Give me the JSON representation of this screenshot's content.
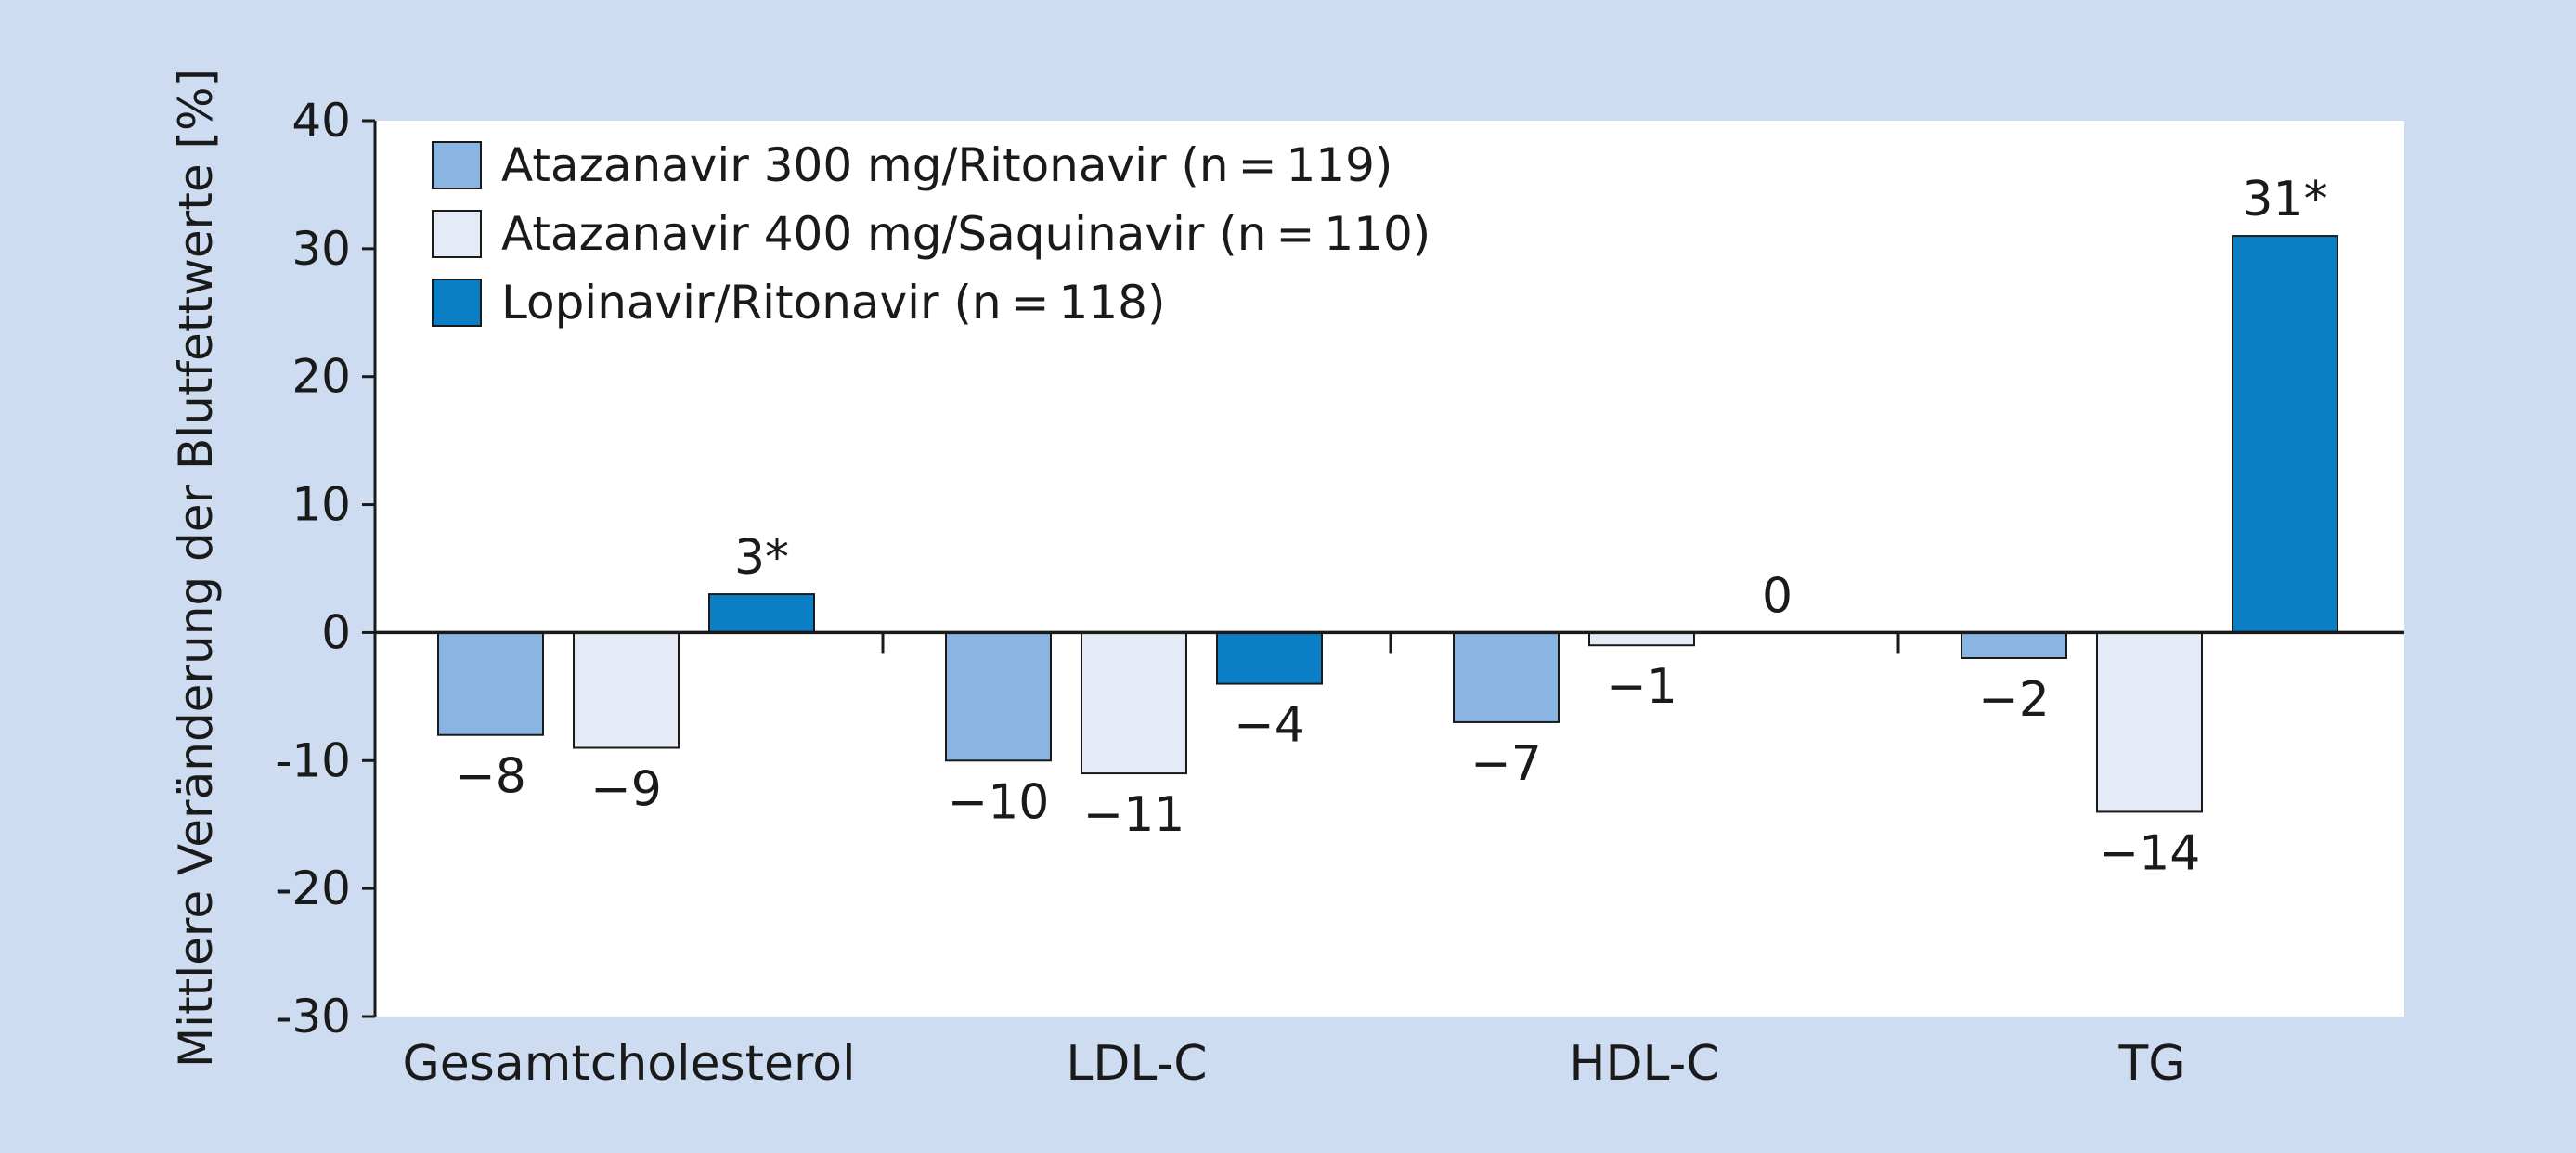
{
  "colors": {
    "frame": "#cddcf1",
    "plot": "#ffffff",
    "axis": "#1a1a1a",
    "series": [
      "#8ab4e2",
      "#e4ebf6",
      "#0b7fc6"
    ]
  },
  "chart_data": {
    "type": "bar",
    "title": "",
    "xlabel": "",
    "ylabel": "Mittlere Veränderung der Blutfettwerte [%]",
    "ylim": [
      -30,
      40
    ],
    "yticks": [
      -30,
      -20,
      -10,
      0,
      10,
      20,
      30,
      40
    ],
    "ytick_labels": [
      "-30",
      "-20",
      "-10",
      "0",
      "10",
      "20",
      "30",
      "40"
    ],
    "grid": false,
    "legend_position": "top-left",
    "categories": [
      "Gesamtcholesterol",
      "LDL-C",
      "HDL-C",
      "TG"
    ],
    "series": [
      {
        "name": "Atazanavir 300 mg/Ritonavir (n = 119)",
        "values": [
          -8,
          -10,
          -7,
          -2
        ],
        "labels": [
          "−8",
          "−10",
          "−7",
          "−2"
        ]
      },
      {
        "name": "Atazanavir 400 mg/Saquinavir (n = 110)",
        "values": [
          -9,
          -11,
          -1,
          -14
        ],
        "labels": [
          "−9",
          "−11",
          "−1",
          "−14"
        ]
      },
      {
        "name": "Lopinavir/Ritonavir (n = 118)",
        "values": [
          3,
          -4,
          0,
          31
        ],
        "labels": [
          "3*",
          "−4",
          "0",
          "31*"
        ]
      }
    ]
  }
}
